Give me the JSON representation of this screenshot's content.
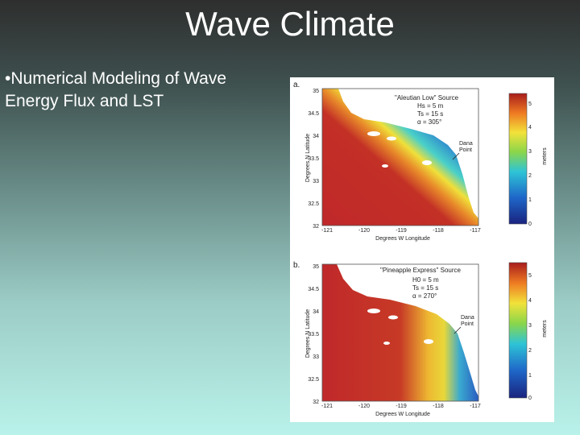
{
  "slide": {
    "title": "Wave Climate",
    "bullet_marker": "•",
    "bullet_text": "Numerical Modeling of Wave Energy Flux and LST"
  },
  "figure": {
    "panels": [
      {
        "letter": "a.",
        "source": "\"Aleutian Low\" Source",
        "hs": "Hs = 5 m",
        "ts": "Ts = 15 s",
        "alpha": "α = 305°",
        "place_line1": "Dana",
        "place_line2": "Point"
      },
      {
        "letter": "b.",
        "source": "\"Pineapple Express\" Source",
        "hs": "H0 = 5 m",
        "ts": "Ts = 15 s",
        "alpha": "α = 270°",
        "place_line1": "Dana",
        "place_line2": "Point"
      }
    ],
    "x_label": "Degrees W Longitude",
    "y_label": "Degrees N Latitude",
    "x_ticks": [
      "-121",
      "-120",
      "-119",
      "-118",
      "-117"
    ],
    "y_ticks": [
      "35",
      "34.5",
      "34",
      "33.5",
      "33",
      "32.5",
      "32"
    ],
    "colorbar_ticks": [
      "5",
      "4",
      "3",
      "2",
      "1",
      "0"
    ],
    "colorbar_label": "meters",
    "colors": {
      "high": "#c0282a",
      "mid": "#e8d83a",
      "low": "#2a3c9c",
      "land": "#ffffff"
    }
  }
}
